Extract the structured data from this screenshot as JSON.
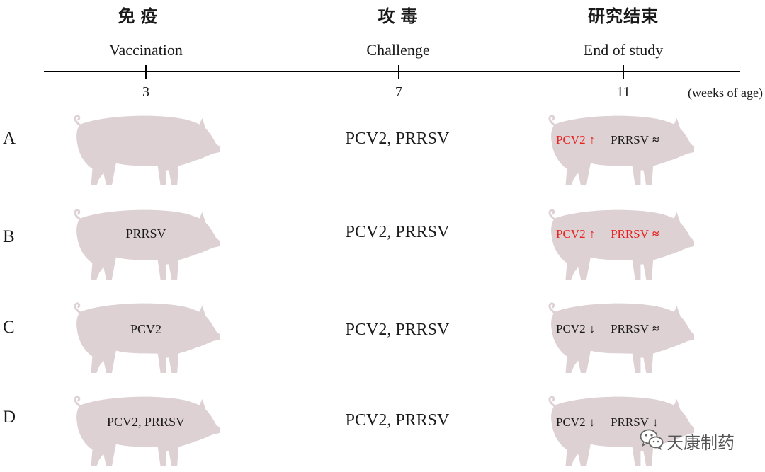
{
  "timeline": {
    "events": [
      {
        "zh": "免 疫",
        "en": "Vaccination",
        "week": "3"
      },
      {
        "zh": "攻 毒",
        "en": "Challenge",
        "week": "7"
      },
      {
        "zh": "研究结束",
        "en": "End of study",
        "week": "11"
      }
    ],
    "unit": "(weeks of age)"
  },
  "groups": [
    {
      "label": "A",
      "vaccination": "",
      "challenge": "PCV2, PRRSV",
      "results": [
        {
          "virus": "PCV2",
          "trend": "↑",
          "color": "#e8221f"
        },
        {
          "virus": "PRRSV",
          "trend": "≈",
          "color": "#1a1a1a"
        }
      ]
    },
    {
      "label": "B",
      "vaccination": "PRRSV",
      "challenge": "PCV2, PRRSV",
      "results": [
        {
          "virus": "PCV2",
          "trend": "↑",
          "color": "#e8221f"
        },
        {
          "virus": "PRRSV",
          "trend": "≈",
          "color": "#e8221f"
        }
      ]
    },
    {
      "label": "C",
      "vaccination": "PCV2",
      "challenge": "PCV2, PRRSV",
      "results": [
        {
          "virus": "PCV2",
          "trend": "↓",
          "color": "#1a1a1a"
        },
        {
          "virus": "PRRSV",
          "trend": "≈",
          "color": "#1a1a1a"
        }
      ]
    },
    {
      "label": "D",
      "vaccination": "PCV2, PRRSV",
      "challenge": "PCV2, PRRSV",
      "results": [
        {
          "virus": "PCV2",
          "trend": "↓",
          "color": "#1a1a1a"
        },
        {
          "virus": "PRRSV",
          "trend": "↓",
          "color": "#1a1a1a"
        }
      ]
    }
  ],
  "colors": {
    "pig": "#ddd1d4",
    "highlight": "#e8221f",
    "text": "#1a1a1a"
  },
  "watermark": {
    "icon": "wechat-icon",
    "text": "天康制药"
  }
}
